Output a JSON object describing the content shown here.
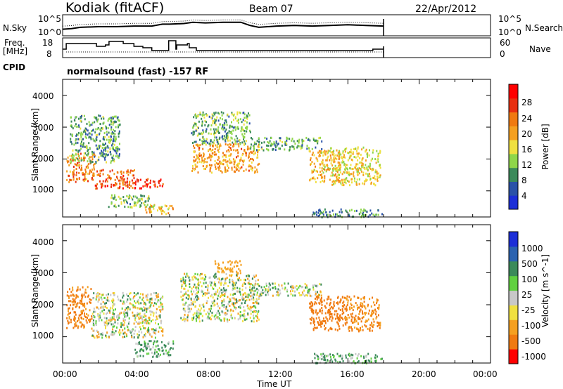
{
  "header": {
    "station": "Kodiak (fitACF)",
    "beam": "Beam 07",
    "date": "22/Apr/2012"
  },
  "nsky_panel": {
    "left_label": "N.Sky",
    "right_label": "N.Search",
    "left_ticks": [
      "10^5",
      "10^0"
    ],
    "right_ticks": [
      "10^5",
      "10^0"
    ]
  },
  "freq_panel": {
    "left_label_1": "Freq.",
    "left_label_2": "[MHz]",
    "right_label": "Nave",
    "left_ticks": [
      "18",
      "8"
    ],
    "right_ticks": [
      "60",
      "0"
    ]
  },
  "cpid": {
    "label": "CPID",
    "text": "normalsound (fast) -157 RF"
  },
  "xaxis": {
    "label": "Time UT",
    "ticks": [
      "00:00",
      "04:00",
      "08:00",
      "12:00",
      "16:00",
      "20:00",
      "00:00"
    ]
  },
  "power_panel": {
    "ylabel": "Slant Range [km]",
    "yticks": [
      "1000",
      "2000",
      "3000",
      "4000"
    ],
    "cbar_label": "Power [dB]",
    "cbar_ticks": [
      "4",
      "8",
      "12",
      "16",
      "20",
      "24",
      "28"
    ],
    "cbar_colors": [
      "#1c2fd8",
      "#2a52a8",
      "#3b8a5a",
      "#8fd64a",
      "#f0e040",
      "#f5a020",
      "#f07a10",
      "#e83010",
      "#ff0000"
    ]
  },
  "velocity_panel": {
    "ylabel": "Slant Range [km]",
    "yticks": [
      "1000",
      "2000",
      "3000",
      "4000"
    ],
    "cbar_label": "Velocity [m s^-1]",
    "cbar_ticks": [
      "1000",
      "500",
      "100",
      "25",
      "-25",
      "-100",
      "-500",
      "-1000"
    ],
    "cbar_colors": [
      "#1c2fd8",
      "#2a62b0",
      "#3b8a5a",
      "#60d040",
      "#c8c8c8",
      "#f0e040",
      "#f5a020",
      "#f07a10",
      "#ff0000"
    ]
  },
  "chart_data": {
    "type": "heatmap",
    "x_range_hours": [
      0,
      24
    ],
    "y_range_km": [
      180,
      4500
    ],
    "nsky_line": [
      [
        0.0,
        0.3
      ],
      [
        0.5,
        0.35
      ],
      [
        1.0,
        0.45
      ],
      [
        2.0,
        0.5
      ],
      [
        3.0,
        0.5
      ],
      [
        4.0,
        0.55
      ],
      [
        5.0,
        0.55
      ],
      [
        5.6,
        0.7
      ],
      [
        6.0,
        0.7
      ],
      [
        6.8,
        0.75
      ],
      [
        7.3,
        0.85
      ],
      [
        8.0,
        0.8
      ],
      [
        9.0,
        0.85
      ],
      [
        10.0,
        0.85
      ],
      [
        10.5,
        0.6
      ],
      [
        11.0,
        0.45
      ],
      [
        12.0,
        0.55
      ],
      [
        13.0,
        0.6
      ],
      [
        14.0,
        0.55
      ],
      [
        15.0,
        0.6
      ],
      [
        16.0,
        0.65
      ],
      [
        17.0,
        0.6
      ],
      [
        18.0,
        0.55
      ]
    ],
    "freq_mhz": [
      [
        0.0,
        12
      ],
      [
        0.2,
        16
      ],
      [
        1.6,
        16
      ],
      [
        1.9,
        14
      ],
      [
        2.4,
        15
      ],
      [
        2.6,
        17.5
      ],
      [
        3.4,
        16
      ],
      [
        4.0,
        14
      ],
      [
        4.5,
        13
      ],
      [
        5.0,
        11
      ],
      [
        5.9,
        11
      ],
      [
        5.95,
        18
      ],
      [
        6.3,
        18
      ],
      [
        6.35,
        12
      ],
      [
        6.4,
        15
      ],
      [
        7.0,
        16
      ],
      [
        7.1,
        13
      ],
      [
        7.4,
        13
      ],
      [
        7.5,
        11
      ],
      [
        17.0,
        11
      ],
      [
        17.4,
        12
      ],
      [
        17.9,
        12
      ],
      [
        18.0,
        12
      ]
    ],
    "power_regions": [
      {
        "t": [
          0.2,
          1.8
        ],
        "r": [
          1300,
          2200
        ],
        "db": 22
      },
      {
        "t": [
          1.8,
          4.0
        ],
        "r": [
          1100,
          1700
        ],
        "db": 25
      },
      {
        "t": [
          4.0,
          5.6
        ],
        "r": [
          1100,
          1400
        ],
        "db": 28
      },
      {
        "t": [
          0.4,
          3.2
        ],
        "r": [
          1900,
          3400
        ],
        "db": 10
      },
      {
        "t": [
          2.5,
          5.0
        ],
        "r": [
          500,
          900
        ],
        "db": 12
      },
      {
        "t": [
          4.6,
          6.2
        ],
        "r": [
          300,
          600
        ],
        "db": 18
      },
      {
        "t": [
          7.2,
          11.0
        ],
        "r": [
          1600,
          2500
        ],
        "db": 20
      },
      {
        "t": [
          7.2,
          10.5
        ],
        "r": [
          2500,
          3500
        ],
        "db": 11
      },
      {
        "t": [
          10.5,
          14.5
        ],
        "r": [
          2300,
          2700
        ],
        "db": 10
      },
      {
        "t": [
          13.8,
          15.5
        ],
        "r": [
          1300,
          2300
        ],
        "db": 18
      },
      {
        "t": [
          15.0,
          17.8
        ],
        "r": [
          1200,
          2400
        ],
        "db": 16
      },
      {
        "t": [
          14.0,
          17.9
        ],
        "r": [
          200,
          450
        ],
        "db": 9
      }
    ],
    "velocity_regions": [
      {
        "t": [
          0.2,
          1.6
        ],
        "r": [
          1300,
          2600
        ],
        "v": -300
      },
      {
        "t": [
          1.6,
          5.6
        ],
        "r": [
          1000,
          2400
        ],
        "v": 0
      },
      {
        "t": [
          4.0,
          6.2
        ],
        "r": [
          400,
          900
        ],
        "v": 80
      },
      {
        "t": [
          6.6,
          11.0
        ],
        "r": [
          1500,
          3000
        ],
        "v": 0
      },
      {
        "t": [
          8.5,
          10.0
        ],
        "r": [
          3000,
          3400
        ],
        "v": -150
      },
      {
        "t": [
          10.5,
          14.5
        ],
        "r": [
          2300,
          2700
        ],
        "v": 0
      },
      {
        "t": [
          13.8,
          15.8
        ],
        "r": [
          1200,
          2300
        ],
        "v": -400
      },
      {
        "t": [
          15.8,
          17.8
        ],
        "r": [
          1200,
          2300
        ],
        "v": -250
      },
      {
        "t": [
          14.0,
          17.9
        ],
        "r": [
          200,
          500
        ],
        "v": 90
      }
    ]
  }
}
